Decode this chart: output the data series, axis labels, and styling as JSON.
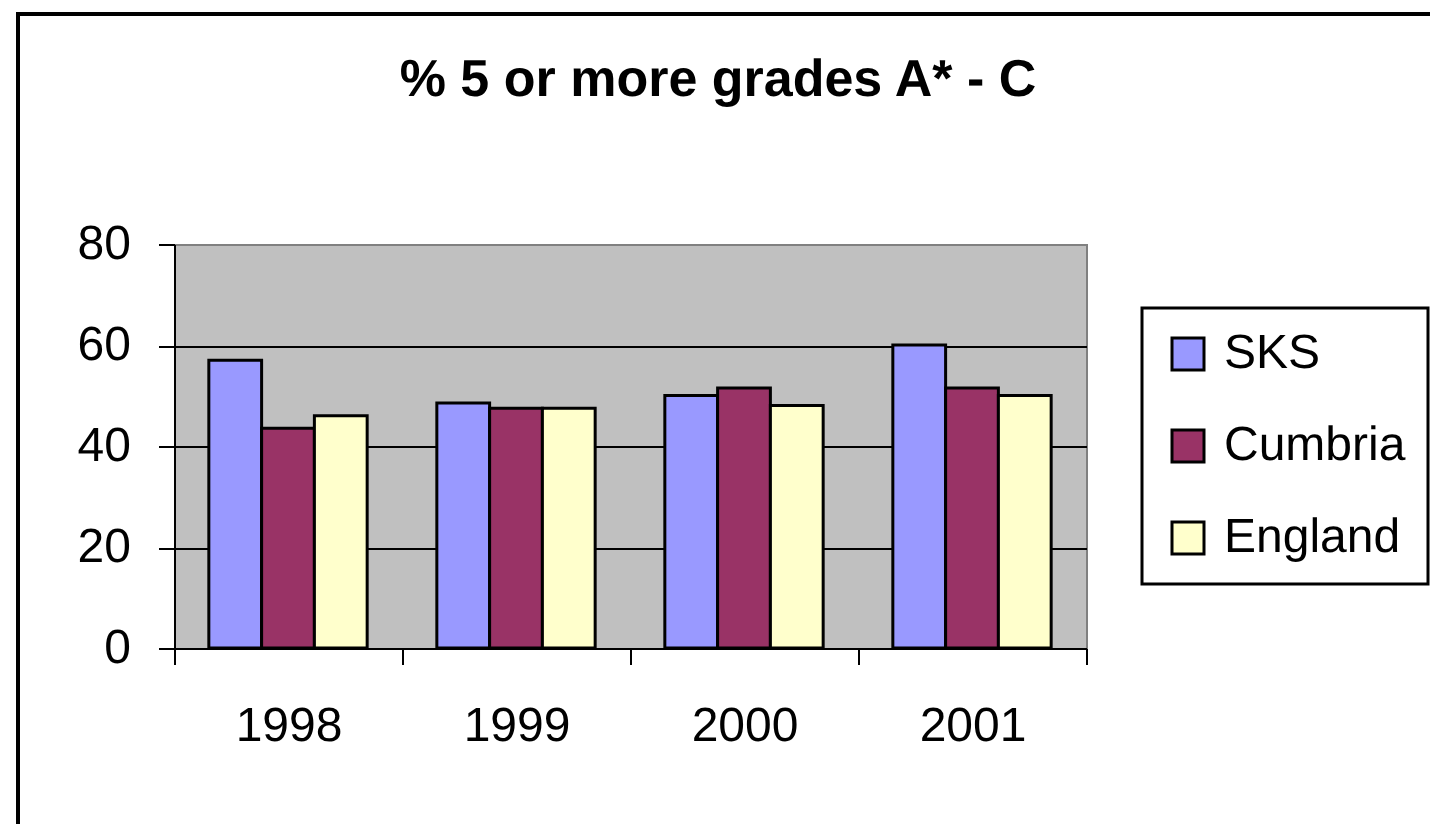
{
  "chart_data": {
    "type": "bar",
    "title": "% 5 or more grades A* - C",
    "categories": [
      "1998",
      "1999",
      "2000",
      "2001"
    ],
    "series": [
      {
        "name": "SKS",
        "color": "#9999ff",
        "values": [
          57,
          48.5,
          50,
          60
        ]
      },
      {
        "name": "Cumbria",
        "color": "#993366",
        "values": [
          43.5,
          47.5,
          51.5,
          51.5
        ]
      },
      {
        "name": "England",
        "color": "#ffffcc",
        "values": [
          46,
          47.5,
          48,
          50
        ]
      }
    ],
    "ylim": [
      0,
      80
    ],
    "yticks": [
      0,
      20,
      40,
      60,
      80
    ],
    "grid": "y",
    "legend": "right"
  }
}
